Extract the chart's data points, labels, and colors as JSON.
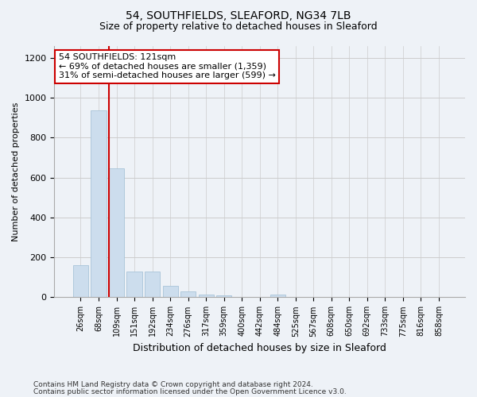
{
  "title1": "54, SOUTHFIELDS, SLEAFORD, NG34 7LB",
  "title2": "Size of property relative to detached houses in Sleaford",
  "xlabel": "Distribution of detached houses by size in Sleaford",
  "ylabel": "Number of detached properties",
  "footnote1": "Contains HM Land Registry data © Crown copyright and database right 2024.",
  "footnote2": "Contains public sector information licensed under the Open Government Licence v3.0.",
  "bins": [
    "26sqm",
    "68sqm",
    "109sqm",
    "151sqm",
    "192sqm",
    "234sqm",
    "276sqm",
    "317sqm",
    "359sqm",
    "400sqm",
    "442sqm",
    "484sqm",
    "525sqm",
    "567sqm",
    "608sqm",
    "650sqm",
    "692sqm",
    "733sqm",
    "775sqm",
    "816sqm",
    "858sqm"
  ],
  "values": [
    160,
    935,
    645,
    130,
    128,
    57,
    30,
    15,
    10,
    0,
    0,
    13,
    0,
    0,
    0,
    0,
    0,
    0,
    0,
    0,
    0
  ],
  "bar_color": "#ccdded",
  "bar_edgecolor": "#a8c4d8",
  "annotation_text1": "54 SOUTHFIELDS: 121sqm",
  "annotation_text2": "← 69% of detached houses are smaller (1,359)",
  "annotation_text3": "31% of semi-detached houses are larger (599) →",
  "annotation_box_color": "white",
  "annotation_box_edgecolor": "#cc0000",
  "vline_color": "#cc0000",
  "vline_x_index": 2,
  "ylim": [
    0,
    1260
  ],
  "yticks": [
    0,
    200,
    400,
    600,
    800,
    1000,
    1200
  ],
  "grid_color": "#cccccc",
  "background_color": "#eef2f7",
  "axes_background": "#eef2f7",
  "title1_fontsize": 10,
  "title2_fontsize": 9,
  "xlabel_fontsize": 9,
  "ylabel_fontsize": 8,
  "tick_fontsize": 8,
  "annot_fontsize": 8
}
